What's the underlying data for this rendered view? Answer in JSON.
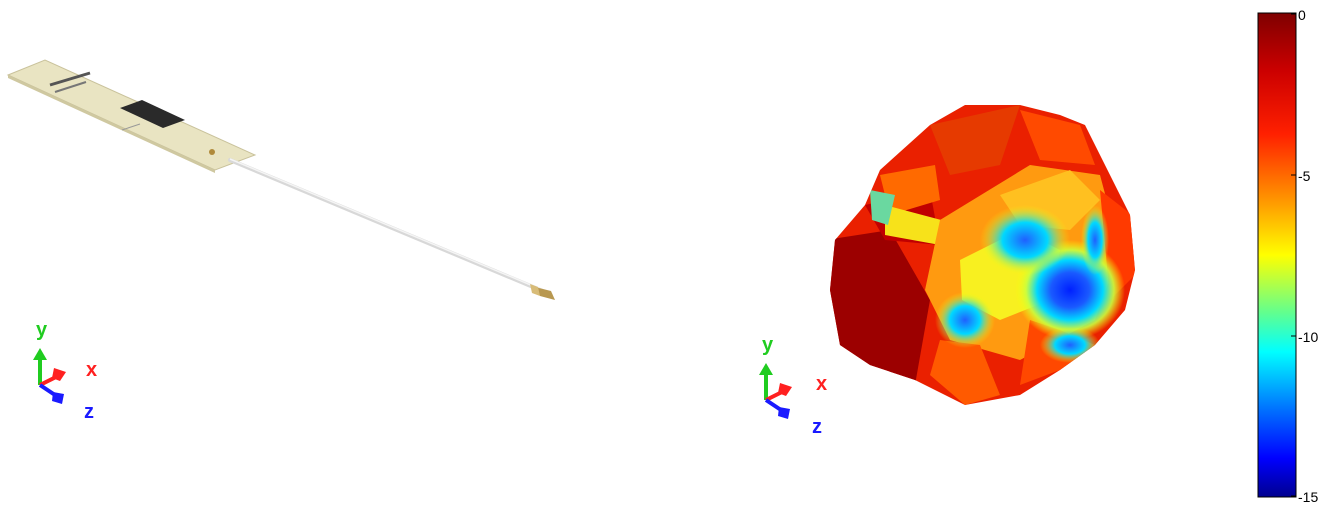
{
  "left_view": {
    "triad": {
      "x_label": "x",
      "y_label": "y",
      "z_label": "z"
    }
  },
  "right_view": {
    "triad": {
      "x_label": "x",
      "y_label": "y",
      "z_label": "z"
    }
  },
  "colorbar": {
    "ticks": [
      "0",
      "-5",
      "-10",
      "-15"
    ],
    "colors": [
      "#7f0000",
      "#ff0000",
      "#ff7f00",
      "#ffff00",
      "#00ffff",
      "#0000ff",
      "#00008f"
    ]
  },
  "colors": {
    "axis_x": "#ff2020",
    "axis_y": "#20cc20",
    "axis_z": "#1a1aff"
  }
}
